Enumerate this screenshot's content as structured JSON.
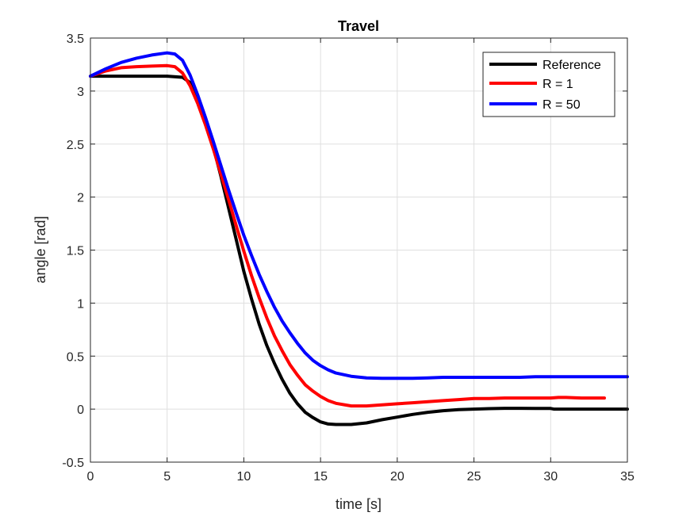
{
  "chart_data": {
    "type": "line",
    "title": "Travel",
    "xlabel": "time [s]",
    "ylabel": "angle [rad]",
    "xlim": [
      0,
      35
    ],
    "ylim": [
      -0.5,
      3.5
    ],
    "xticks": [
      0,
      5,
      10,
      15,
      20,
      25,
      30,
      35
    ],
    "yticks": [
      -0.5,
      0,
      0.5,
      1,
      1.5,
      2,
      2.5,
      3,
      3.5
    ],
    "xtick_labels": [
      "0",
      "5",
      "10",
      "15",
      "20",
      "25",
      "30",
      "35"
    ],
    "ytick_labels": [
      "-0.5",
      "0",
      "0.5",
      "1",
      "1.5",
      "2",
      "2.5",
      "3",
      "3.5"
    ],
    "grid": true,
    "legend_position": "top-right",
    "series": [
      {
        "name": "Reference",
        "color": "#000000",
        "x": [
          0,
          1,
          2,
          3,
          4,
          5,
          6,
          6.5,
          7,
          7.5,
          8,
          8.5,
          9,
          9.5,
          10,
          10.5,
          11,
          11.5,
          12,
          12.5,
          13,
          13.5,
          14,
          14.5,
          15,
          15.5,
          16,
          17,
          18,
          19,
          20,
          21,
          22,
          23,
          24,
          25,
          26,
          27,
          28,
          29,
          30,
          30.2,
          31,
          32,
          33,
          34,
          35
        ],
        "y": [
          3.14,
          3.14,
          3.14,
          3.14,
          3.14,
          3.14,
          3.13,
          3.08,
          2.93,
          2.72,
          2.48,
          2.2,
          1.9,
          1.6,
          1.3,
          1.04,
          0.8,
          0.6,
          0.43,
          0.28,
          0.15,
          0.05,
          -0.03,
          -0.08,
          -0.12,
          -0.14,
          -0.145,
          -0.145,
          -0.13,
          -0.1,
          -0.075,
          -0.05,
          -0.03,
          -0.015,
          -0.005,
          0.0,
          0.005,
          0.008,
          0.008,
          0.007,
          0.006,
          0.0,
          0.0,
          0.0,
          0.0,
          0.0,
          0.0
        ]
      },
      {
        "name": "R = 1",
        "color": "#ff0000",
        "x": [
          0,
          1,
          2,
          3,
          4,
          5,
          5.5,
          6,
          6.5,
          7,
          7.5,
          8,
          8.5,
          9,
          9.5,
          10,
          10.5,
          11,
          11.5,
          12,
          12.5,
          13,
          13.5,
          14,
          14.5,
          15,
          15.5,
          16,
          17,
          18,
          19,
          20,
          21,
          22,
          23,
          24,
          25,
          26,
          27,
          28,
          29,
          30,
          30.5,
          31,
          32,
          33,
          33.5
        ],
        "y": [
          3.14,
          3.19,
          3.22,
          3.23,
          3.235,
          3.24,
          3.23,
          3.17,
          3.05,
          2.88,
          2.68,
          2.46,
          2.22,
          1.98,
          1.73,
          1.49,
          1.26,
          1.05,
          0.86,
          0.69,
          0.55,
          0.42,
          0.32,
          0.23,
          0.17,
          0.12,
          0.08,
          0.055,
          0.03,
          0.03,
          0.04,
          0.05,
          0.06,
          0.07,
          0.08,
          0.09,
          0.1,
          0.1,
          0.105,
          0.105,
          0.105,
          0.105,
          0.11,
          0.11,
          0.105,
          0.105,
          0.105
        ]
      },
      {
        "name": "R = 50",
        "color": "#0000ff",
        "x": [
          0,
          1,
          2,
          3,
          4,
          5,
          5.5,
          6,
          6.5,
          7,
          7.5,
          8,
          8.5,
          9,
          9.5,
          10,
          10.5,
          11,
          11.5,
          12,
          12.5,
          13,
          13.5,
          14,
          14.5,
          15,
          15.5,
          16,
          17,
          18,
          19,
          20,
          21,
          22,
          23,
          24,
          25,
          26,
          27,
          28,
          29,
          30,
          31,
          32,
          33,
          34,
          35
        ],
        "y": [
          3.14,
          3.21,
          3.27,
          3.31,
          3.34,
          3.36,
          3.35,
          3.29,
          3.15,
          2.96,
          2.75,
          2.53,
          2.3,
          2.07,
          1.85,
          1.64,
          1.45,
          1.27,
          1.11,
          0.96,
          0.83,
          0.72,
          0.62,
          0.53,
          0.46,
          0.41,
          0.37,
          0.34,
          0.31,
          0.295,
          0.29,
          0.29,
          0.29,
          0.295,
          0.3,
          0.3,
          0.3,
          0.3,
          0.3,
          0.3,
          0.305,
          0.305,
          0.305,
          0.305,
          0.305,
          0.305,
          0.305
        ]
      }
    ]
  }
}
